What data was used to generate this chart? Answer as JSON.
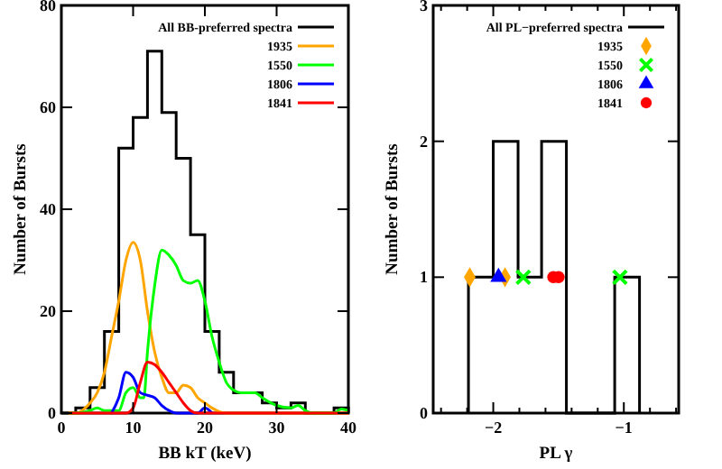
{
  "chart_data": [
    {
      "type": "histogram",
      "xlabel": "BB kT (keV)",
      "ylabel": "Number of Bursts",
      "xlim": [
        0,
        40
      ],
      "ylim": [
        0,
        80
      ],
      "xticks": [
        0,
        10,
        20,
        30,
        40
      ],
      "yticks": [
        0,
        20,
        40,
        60,
        80
      ],
      "legend": "top right",
      "grid": false,
      "series": [
        {
          "name": "All BB-preferred spectra",
          "color": "#000000",
          "bins": [
            0,
            2,
            4,
            6,
            8,
            10,
            12,
            14,
            16,
            18,
            20,
            22,
            24,
            26,
            28,
            30,
            32,
            34,
            36,
            38,
            40
          ],
          "values": [
            0,
            1,
            5,
            16,
            52,
            58,
            71,
            59,
            50,
            35,
            16,
            8,
            4,
            4,
            2,
            1,
            2,
            0,
            0,
            1
          ]
        },
        {
          "name": "1935",
          "type": "line",
          "color": "#ffa500",
          "x": [
            1,
            2,
            4,
            5,
            6,
            7,
            8,
            9,
            10,
            11,
            12,
            13,
            14,
            15,
            16,
            17,
            18,
            19,
            20,
            21,
            22,
            23,
            40
          ],
          "values": [
            0,
            0,
            2,
            4,
            8,
            15,
            22,
            30,
            33.5,
            30,
            20,
            12,
            7,
            4,
            4,
            5.5,
            5,
            3,
            2,
            1,
            0.3,
            0,
            0
          ]
        },
        {
          "name": "1550",
          "type": "line",
          "color": "#00ff00",
          "x": [
            1,
            2,
            4,
            5,
            6,
            8,
            9,
            10,
            11,
            11.5,
            12,
            13,
            14,
            15,
            16,
            17,
            18,
            19,
            20,
            21,
            22,
            23,
            24,
            25,
            27,
            28,
            30,
            32,
            33,
            34,
            35,
            38,
            39,
            40
          ],
          "values": [
            0,
            0,
            0.5,
            1,
            0.5,
            0.5,
            4,
            5,
            3,
            3,
            12,
            25,
            32,
            31,
            29,
            26,
            25.5,
            26,
            22,
            15,
            10,
            6,
            4.5,
            4,
            4,
            3,
            1.5,
            1,
            1.5,
            0.5,
            0,
            0,
            0.8,
            0.5
          ]
        },
        {
          "name": "1806",
          "type": "line",
          "color": "#0000ff",
          "x": [
            7,
            8,
            9,
            10,
            11,
            12,
            13,
            14,
            15,
            16,
            19,
            20,
            21
          ],
          "values": [
            0,
            3,
            8,
            7,
            4,
            3.5,
            3,
            1.5,
            0.5,
            0,
            0,
            1,
            0
          ]
        },
        {
          "name": "1841",
          "type": "line",
          "color": "#ff0000",
          "x": [
            1,
            9,
            10,
            11,
            12,
            13,
            14,
            15,
            16,
            17,
            18,
            19,
            40
          ],
          "values": [
            0,
            0,
            1,
            6,
            10,
            9.5,
            8,
            6,
            4,
            2,
            0.5,
            0,
            0
          ]
        }
      ]
    },
    {
      "type": "histogram",
      "xlabel": "PL γ",
      "ylabel": "Number of Bursts",
      "xlim": [
        -2.46,
        -0.58
      ],
      "ylim": [
        0,
        3
      ],
      "xticks": [
        {
          "value": -2.4,
          "label": null
        },
        {
          "value": -2.2,
          "label": null
        },
        {
          "value": -2,
          "label": "−2"
        },
        {
          "value": -1.8,
          "label": null
        },
        {
          "value": -1.6,
          "label": null
        },
        {
          "value": -1.4,
          "label": null
        },
        {
          "value": -1.2,
          "label": null
        },
        {
          "value": -1,
          "label": "−1"
        },
        {
          "value": -0.8,
          "label": null
        },
        {
          "value": -0.6,
          "label": null
        }
      ],
      "yticks": [
        0,
        1,
        2,
        3
      ],
      "legend": "top right",
      "grid": false,
      "series": [
        {
          "name": "All PL−preferred spectra",
          "color": "#000000",
          "bins": [
            -2.19,
            -2.0,
            -1.81,
            -1.63,
            -1.44,
            -1.25,
            -1.07,
            -0.88
          ],
          "values": [
            1,
            2,
            1,
            2,
            0,
            0,
            1
          ]
        },
        {
          "name": "1935",
          "type": "scatter",
          "marker": "diamond",
          "color": "#ffa500",
          "x": [
            -2.18,
            -1.91
          ],
          "values": [
            1,
            1
          ]
        },
        {
          "name": "1550",
          "type": "scatter",
          "marker": "cross",
          "color": "#00ff00",
          "x": [
            -1.77,
            -1.03
          ],
          "values": [
            1,
            1
          ]
        },
        {
          "name": "1806",
          "type": "scatter",
          "marker": "triangle",
          "color": "#0000ff",
          "x": [
            -1.96
          ],
          "values": [
            1
          ]
        },
        {
          "name": "1841",
          "type": "scatter",
          "marker": "circle",
          "color": "#ff0000",
          "x": [
            -1.54,
            -1.5
          ],
          "values": [
            1,
            1
          ]
        }
      ]
    }
  ]
}
